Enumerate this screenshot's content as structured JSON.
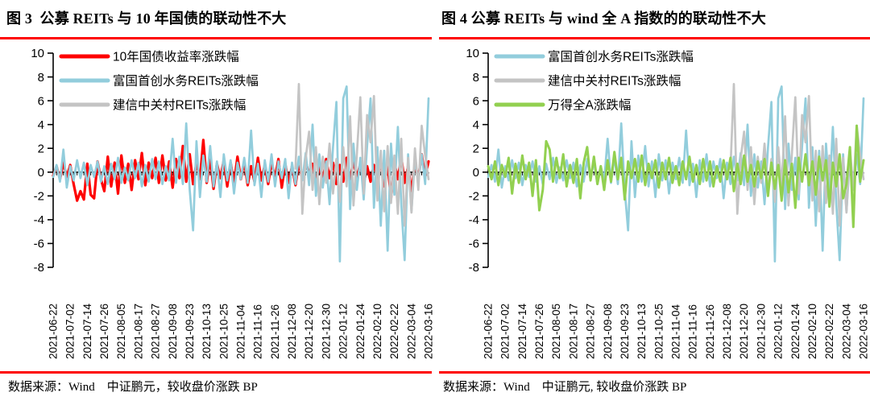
{
  "accent": {
    "rule_color": "#fe0000",
    "text_color": "#000000"
  },
  "chart_data": [
    {
      "type": "line",
      "title": "图 3  公募 REITs 与 10 年国债的联动性不大",
      "source": "数据来源：Wind　中证鹏元，较收盘价涨跌 BP",
      "ylim": [
        -8,
        10
      ],
      "y_ticks": [
        10,
        8,
        6,
        4,
        2,
        0,
        -2,
        -4,
        -6,
        -8
      ],
      "grid": "off",
      "legend_position": "top-left-inside",
      "n_points": 111,
      "x_tick_labels": [
        "2021-06-22",
        "2021-07-02",
        "2021-07-14",
        "2021-07-26",
        "2021-08-05",
        "2021-08-17",
        "2021-08-27",
        "2021-09-08",
        "2021-09-23",
        "2021-10-13",
        "2021-10-25",
        "2021-11-04",
        "2021-11-16",
        "2021-11-26",
        "2021-12-08",
        "2021-12-20",
        "2021-12-30",
        "2022-01-12",
        "2022-01-24",
        "2022-02-10",
        "2022-02-22",
        "2022-03-04",
        "2022-03-16"
      ],
      "series": [
        {
          "id": "treasury-10y",
          "name": "10年国债收益率涨跌幅",
          "color": "#fe0000",
          "stroke_width": 3.2,
          "start_index": 0,
          "values": [
            -0.3,
            0.5,
            -0.6,
            0.8,
            -0.4,
            0.6,
            -1.0,
            -2.4,
            -1.6,
            -2.3,
            0.7,
            -1.9,
            -2.2,
            0.9,
            -0.6,
            -1.6,
            1.3,
            -1.2,
            0.8,
            -1.8,
            1.4,
            -0.9,
            0.7,
            -1.5,
            1.0,
            -0.6,
            1.6,
            -1.1,
            0.8,
            -0.5,
            1.2,
            -0.9,
            1.4,
            -0.7,
            0.9,
            -1.3,
            1.1,
            -0.5,
            2.2,
            -0.8,
            1.5,
            -1.0,
            0.8,
            -0.6,
            2.7,
            -0.9,
            1.2,
            -1.4,
            0.7,
            -0.5,
            1.0,
            -1.2,
            0.8,
            -0.9,
            1.3,
            -0.6,
            0.9,
            -1.1,
            0.5,
            -0.8,
            1.2,
            -0.7,
            0.6,
            -1.0,
            0.9,
            -0.5,
            1.1,
            -1.3,
            0.7,
            -0.9,
            0.5,
            -1.1,
            0.8,
            -0.6,
            1.0,
            -0.4,
            0.7,
            -0.9,
            0.5,
            -0.7,
            1.1,
            -0.5,
            0.8,
            -1.0,
            0.6,
            -0.8,
            1.2,
            -0.6,
            0.9,
            -0.4,
            0.7,
            -1.0,
            0.5,
            -0.8,
            0.6,
            -0.5,
            0.9,
            -1.2,
            0.6,
            -2.2,
            0.8,
            -0.6,
            1.3,
            -0.9,
            0.5,
            -1.6,
            0.7,
            -0.5,
            1.5,
            -0.4,
            0.9
          ]
        },
        {
          "id": "fuguo-shouchuang-water-reits",
          "name": "富国首创水务REITs涨跌幅",
          "color": "#92cddc",
          "stroke_width": 2.7,
          "start_index": 0,
          "values": [
            -0.4,
            0.6,
            -0.8,
            1.9,
            -1.3,
            0.5,
            -0.7,
            1.0,
            -0.5,
            0.8,
            -1.1,
            0.6,
            -0.4,
            0.9,
            -0.8,
            0.5,
            -1.0,
            0.7,
            -0.6,
            1.2,
            -0.9,
            0.4,
            -0.7,
            1.0,
            -0.5,
            0.8,
            -1.2,
            0.6,
            -0.8,
            1.1,
            -0.6,
            0.9,
            -1.0,
            0.5,
            -0.7,
            2.8,
            -0.9,
            1.3,
            -1.0,
            4.1,
            -1.5,
            -4.9,
            2.6,
            -2.1,
            1.4,
            -0.8,
            2.2,
            -1.2,
            0.9,
            -2.1,
            1.5,
            -0.7,
            1.0,
            -1.8,
            0.8,
            -0.6,
            1.2,
            -0.9,
            3.5,
            -1.1,
            0.7,
            -2.1,
            1.0,
            -0.8,
            1.5,
            -1.2,
            0.9,
            -0.5,
            1.1,
            -2.2,
            0.8,
            -1.0,
            1.3,
            -0.7,
            1.6,
            -1.1,
            4.0,
            -2.0,
            1.5,
            -1.3,
            0.9,
            -2.7,
            2.1,
            5.9,
            -7.5,
            6.2,
            7.2,
            -3.1,
            2.4,
            -1.5,
            1.2,
            -2.3,
            2.2,
            6.2,
            -3.0,
            2.1,
            -4.5,
            1.8,
            -6.6,
            2.4,
            -1.9,
            3.8,
            -2.6,
            -7.4,
            1.5,
            -3.3,
            1.2,
            -0.9,
            1.5,
            -1.0,
            6.2
          ]
        },
        {
          "id": "jianxin-zhongguancun-reits",
          "name": "建信中关村REITs涨跌幅",
          "color": "#c4c4c4",
          "stroke_width": 2.7,
          "start_index": 71,
          "values": [
            0.3,
            7.4,
            -3.5,
            1.2,
            3.4,
            -1.5,
            2.1,
            -2.7,
            1.3,
            -0.9,
            2.4,
            -1.8,
            1.1,
            -2.5,
            2.1,
            -1.2,
            4.7,
            -2.8,
            1.5,
            6.3,
            -1.8,
            4.8,
            2.5,
            6.4,
            -2.4,
            1.8,
            -3.3,
            2.2,
            -2.6,
            1.4,
            -3.5,
            2.8,
            -4.5,
            1.2,
            -3.4,
            2.0,
            -1.5,
            3.9,
            1.4,
            -0.6
          ]
        }
      ]
    },
    {
      "type": "line",
      "title": "图 4 公募 REITs 与 wind 全 A 指数的的联动性不大",
      "source": "数据来源：Wind　中证鹏元, 较收盘价涨跌 BP",
      "ylim": [
        -8,
        10
      ],
      "y_ticks": [
        10,
        8,
        6,
        4,
        2,
        0,
        -2,
        -4,
        -6,
        -8
      ],
      "grid": "off",
      "legend_position": "top-left-inside",
      "n_points": 111,
      "x_tick_labels": [
        "2021-06-22",
        "2021-07-02",
        "2021-07-14",
        "2021-07-26",
        "2021-08-05",
        "2021-08-17",
        "2021-08-27",
        "2021-09-08",
        "2021-09-23",
        "2021-10-13",
        "2021-10-25",
        "2021-11-04",
        "2021-11-16",
        "2021-11-26",
        "2021-12-08",
        "2021-12-20",
        "2021-12-30",
        "2022-01-12",
        "2022-01-24",
        "2022-02-10",
        "2022-02-22",
        "2022-03-04",
        "2022-03-16"
      ],
      "series": [
        {
          "id": "fuguo-shouchuang-water-reits",
          "name": "富国首创水务REITs涨跌幅",
          "color": "#92cddc",
          "stroke_width": 2.7,
          "start_index": 0,
          "values": [
            -0.4,
            0.6,
            -0.8,
            1.9,
            -1.3,
            0.5,
            -0.7,
            1.0,
            -0.5,
            0.8,
            -1.1,
            0.6,
            -0.4,
            0.9,
            -0.8,
            0.5,
            -1.0,
            0.7,
            -0.6,
            1.2,
            -0.9,
            0.4,
            -0.7,
            1.0,
            -0.5,
            0.8,
            -1.2,
            0.6,
            -0.8,
            1.1,
            -0.6,
            0.9,
            -1.0,
            0.5,
            -0.7,
            2.8,
            -0.9,
            1.3,
            -1.0,
            4.1,
            -1.5,
            -4.9,
            2.6,
            -2.1,
            1.4,
            -0.8,
            2.2,
            -1.2,
            0.9,
            -2.1,
            1.5,
            -0.7,
            1.0,
            -1.8,
            0.8,
            -0.6,
            1.2,
            -0.9,
            3.5,
            -1.1,
            0.7,
            -2.1,
            1.0,
            -0.8,
            1.5,
            -1.2,
            0.9,
            -0.5,
            1.1,
            -2.2,
            0.8,
            -1.0,
            1.3,
            -0.7,
            1.6,
            -1.1,
            4.0,
            -2.0,
            1.5,
            -1.3,
            0.9,
            -2.7,
            2.1,
            5.9,
            -7.5,
            6.2,
            7.2,
            -3.1,
            2.4,
            -1.5,
            1.2,
            -2.3,
            2.2,
            6.2,
            -3.0,
            2.1,
            -4.5,
            1.8,
            -6.6,
            2.4,
            -1.9,
            3.8,
            -2.6,
            -7.4,
            1.5,
            -3.3,
            1.2,
            -0.9,
            1.5,
            -1.0,
            6.2
          ]
        },
        {
          "id": "jianxin-zhongguancun-reits",
          "name": "建信中关村REITs涨跌幅",
          "color": "#c4c4c4",
          "stroke_width": 2.7,
          "start_index": 71,
          "values": [
            0.3,
            7.4,
            -3.5,
            1.2,
            3.4,
            -1.5,
            2.1,
            -2.7,
            1.3,
            -0.9,
            2.4,
            -1.8,
            1.1,
            -2.5,
            2.1,
            -1.2,
            4.7,
            -2.8,
            1.5,
            6.3,
            -1.8,
            4.8,
            2.5,
            6.4,
            -2.4,
            1.8,
            -3.3,
            2.2,
            -2.6,
            1.4,
            -3.5,
            2.8,
            -4.5,
            1.2,
            -3.4,
            2.0,
            -1.5,
            3.9,
            1.4,
            -0.6
          ]
        },
        {
          "id": "wind-all-a",
          "name": "万得全A涨跌幅",
          "color": "#92d050",
          "stroke_width": 3.0,
          "start_index": 0,
          "values": [
            0.5,
            -0.6,
            0.9,
            -1.1,
            0.6,
            -0.4,
            1.2,
            -1.8,
            0.7,
            -0.9,
            1.4,
            -0.6,
            0.8,
            -2.0,
            1.0,
            -3.2,
            -1.5,
            2.6,
            1.9,
            -0.8,
            1.2,
            -0.5,
            1.5,
            -1.2,
            0.6,
            -0.9,
            1.1,
            -2.2,
            0.8,
            2.1,
            -0.7,
            1.3,
            -1.0,
            0.5,
            -1.5,
            1.0,
            -0.8,
            1.7,
            -0.6,
            1.2,
            -2.3,
            0.9,
            -0.5,
            1.1,
            -0.8,
            1.4,
            -1.1,
            0.7,
            -0.5,
            1.0,
            -1.3,
            0.8,
            -0.6,
            1.2,
            -0.9,
            0.5,
            -1.1,
            0.9,
            -0.6,
            1.3,
            -0.8,
            0.6,
            -1.0,
            1.1,
            -0.7,
            0.9,
            -1.2,
            0.5,
            -0.8,
            1.0,
            -0.6,
            1.2,
            -1.6,
            0.7,
            -1.0,
            1.4,
            -0.8,
            0.6,
            -1.2,
            0.9,
            -0.5,
            1.1,
            -2.0,
            0.8,
            -1.4,
            0.6,
            -2.4,
            1.0,
            -1.7,
            0.7,
            -3.0,
            1.2,
            -0.8,
            1.5,
            -1.1,
            0.9,
            -1.9,
            1.3,
            -0.7,
            1.0,
            -2.9,
            0.8,
            -1.2,
            1.5,
            -2.2,
            -1.0,
            2.1,
            -4.6,
            3.9,
            -0.8,
            1.0
          ]
        }
      ]
    }
  ]
}
